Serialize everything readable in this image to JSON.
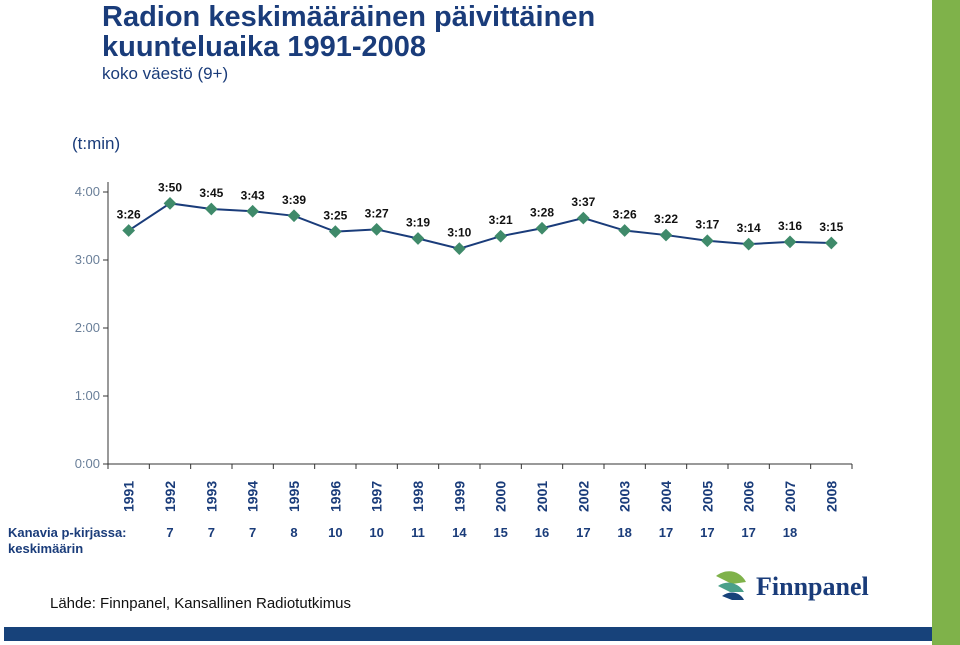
{
  "header": {
    "title_line1": "Radion keskimääräinen päivittäinen",
    "title_line2": "kuunteluaika 1991-2008",
    "subtitle": "koko väestö (9+)",
    "unit": "(t:min)"
  },
  "chart_data": {
    "type": "line",
    "title": "Radion keskimääräinen päivittäinen kuunteluaika 1991-2008",
    "subtitle": "koko väestö (9+)",
    "ylabel": "(t:min)",
    "ylim_minutes": [
      0,
      240
    ],
    "y_ticks": [
      "0:00",
      "1:00",
      "2:00",
      "3:00",
      "4:00"
    ],
    "y_tick_minutes": [
      0,
      60,
      120,
      180,
      240
    ],
    "grid": false,
    "categories": [
      "1991",
      "1992",
      "1993",
      "1994",
      "1995",
      "1996",
      "1997",
      "1998",
      "1999",
      "2000",
      "2001",
      "2002",
      "2003",
      "2004",
      "2005",
      "2006",
      "2007",
      "2008"
    ],
    "series": [
      {
        "color": "#1a3c7a",
        "marker_color": "#3f8a6a",
        "values_minutes": [
          206,
          230,
          225,
          223,
          219,
          205,
          207,
          199,
          190,
          201,
          208,
          217,
          206,
          202,
          197,
          194,
          196,
          195
        ],
        "labels": [
          "3:26",
          "3:50",
          "3:45",
          "3:43",
          "3:39",
          "3:25",
          "3:27",
          "3:19",
          "3:10",
          "3:21",
          "3:28",
          "3:37",
          "3:26",
          "3:22",
          "3:17",
          "3:14",
          "3:16",
          "3:15"
        ]
      }
    ]
  },
  "channels": {
    "title_line1": "Kanavia p-kirjassa:",
    "title_line2": "keskimäärin",
    "values": [
      "",
      "7",
      "7",
      "7",
      "8",
      "10",
      "10",
      "11",
      "14",
      "15",
      "16",
      "17",
      "18",
      "17",
      "17",
      "17",
      "18",
      ""
    ]
  },
  "footer": {
    "source": "Lähde: Finnpanel, Kansallinen Radiotutkimus",
    "logo_text": "Finnpanel"
  },
  "colors": {
    "accent_green": "#7fb24a",
    "navy": "#17427a",
    "title_blue": "#1a3c7a"
  }
}
